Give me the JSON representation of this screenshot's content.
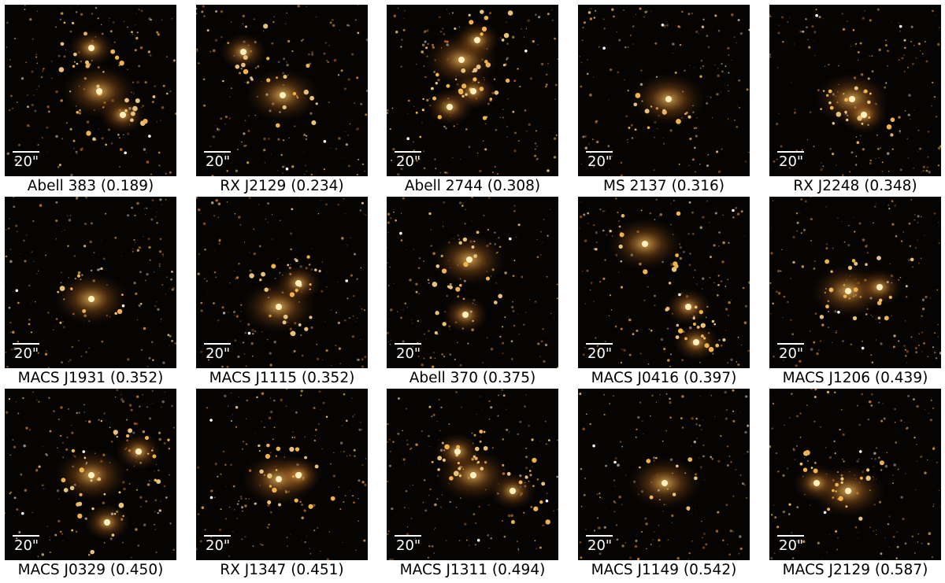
{
  "scale_label": "20\"",
  "panels": [
    {
      "name": "Abell 383",
      "z": "(0.189)"
    },
    {
      "name": "RX J2129",
      "z": "(0.234)"
    },
    {
      "name": "Abell 2744",
      "z": "(0.308)"
    },
    {
      "name": "MS 2137",
      "z": "(0.316)"
    },
    {
      "name": "RX J2248",
      "z": "(0.348)"
    },
    {
      "name": "MACS J1931",
      "z": "(0.352)"
    },
    {
      "name": "MACS J1115",
      "z": "(0.352)"
    },
    {
      "name": "Abell 370",
      "z": "(0.375)"
    },
    {
      "name": "MACS J0416",
      "z": "(0.397)"
    },
    {
      "name": "MACS J1206",
      "z": "(0.439)"
    },
    {
      "name": "MACS J0329",
      "z": "(0.450)"
    },
    {
      "name": "RX J1347",
      "z": "(0.451)"
    },
    {
      "name": "MACS J1311",
      "z": "(0.494)"
    },
    {
      "name": "MACS J1149",
      "z": "(0.542)"
    },
    {
      "name": "MACS J2129",
      "z": "(0.587)"
    }
  ]
}
